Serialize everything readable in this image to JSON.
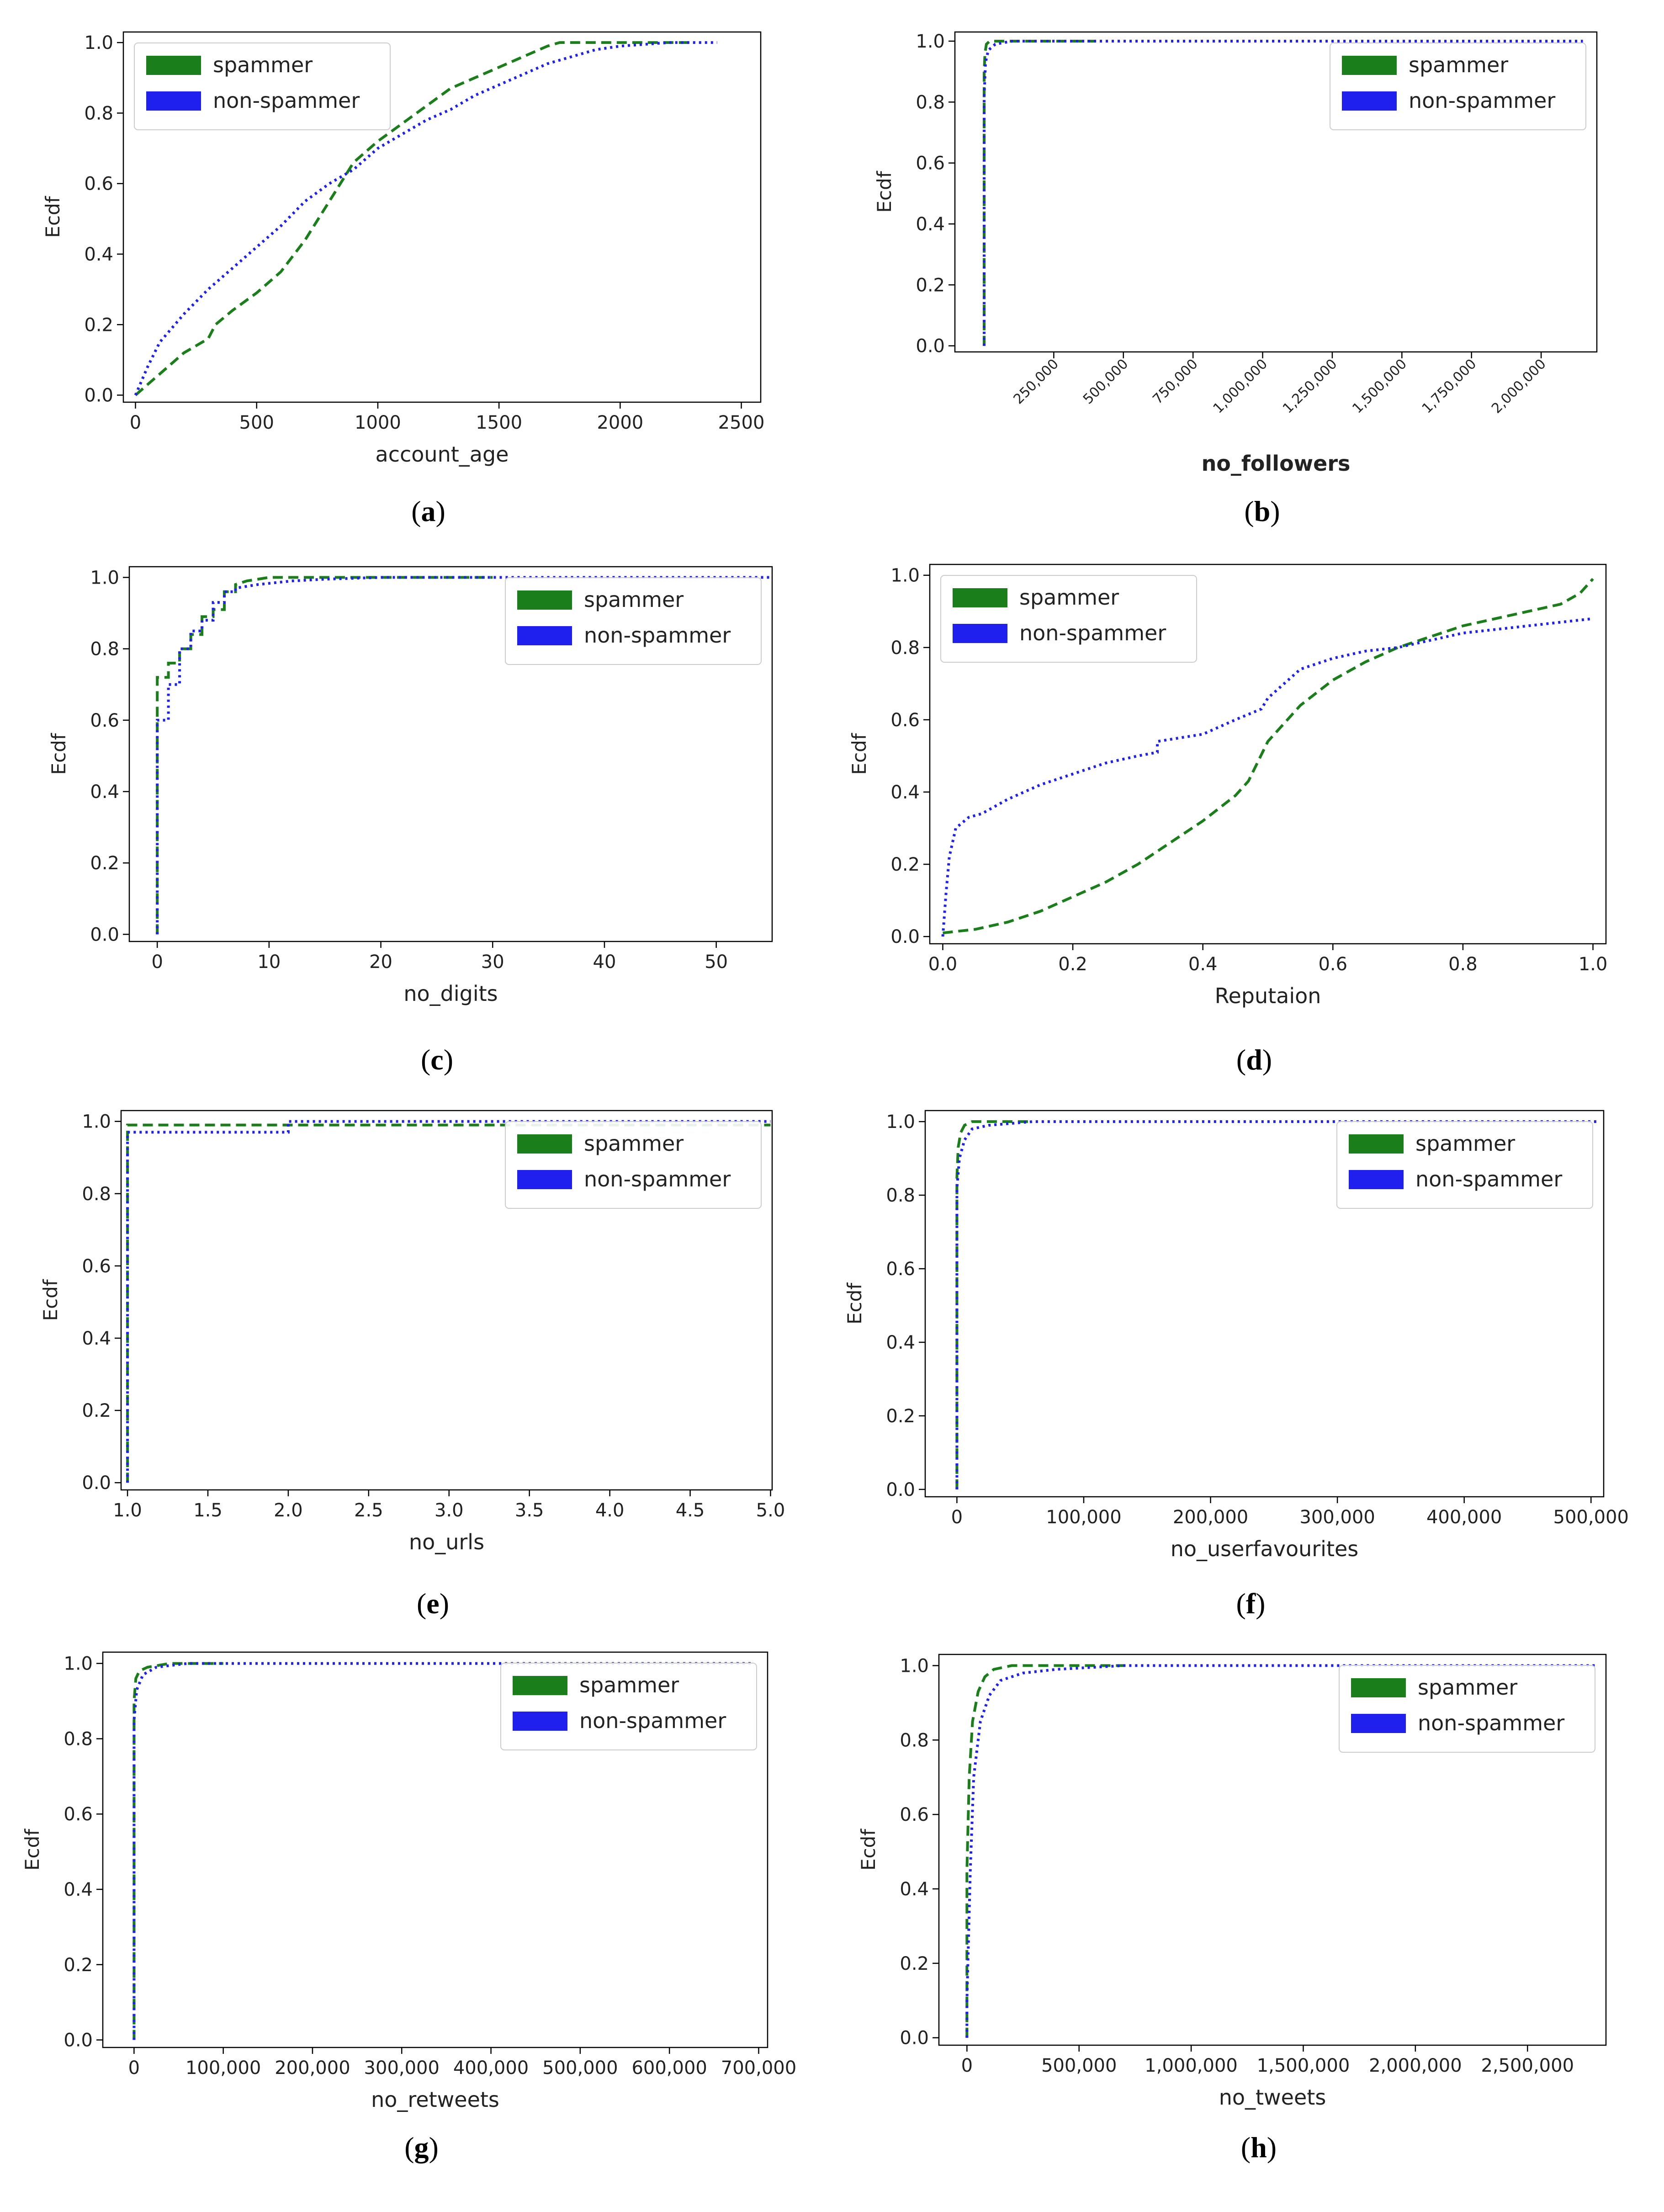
{
  "chart_data": [
    {
      "id": "a",
      "type": "line",
      "panel_label": "(a)",
      "title": "",
      "xlabel": "account_age",
      "ylabel": "Ecdf",
      "xlim": [
        -50,
        2580
      ],
      "ylim": [
        -0.02,
        1.03
      ],
      "xticks": [
        0,
        500,
        1000,
        1500,
        2000,
        2500
      ],
      "xtick_labels": [
        "0",
        "500",
        "1000",
        "1500",
        "2000",
        "2500"
      ],
      "yticks": [
        0.0,
        0.2,
        0.4,
        0.6,
        0.8,
        1.0
      ],
      "ytick_labels": [
        "0.0",
        "0.2",
        "0.4",
        "0.6",
        "0.8",
        "1.0"
      ],
      "legend_position": "top-left",
      "series": [
        {
          "name": "spammer",
          "color": "#1a7f1a",
          "style": "dashed",
          "x": [
            0,
            50,
            100,
            200,
            300,
            330,
            400,
            500,
            600,
            700,
            800,
            900,
            1000,
            1100,
            1200,
            1300,
            1400,
            1500,
            1600,
            1700,
            1750,
            1800,
            2000,
            2200,
            2300
          ],
          "y": [
            0.0,
            0.03,
            0.06,
            0.12,
            0.16,
            0.2,
            0.24,
            0.29,
            0.35,
            0.44,
            0.55,
            0.66,
            0.72,
            0.77,
            0.82,
            0.87,
            0.9,
            0.93,
            0.96,
            0.99,
            1.0,
            1.0,
            1.0,
            1.0,
            1.0
          ]
        },
        {
          "name": "non-spammer",
          "color": "#2020ee",
          "style": "dotted",
          "x": [
            0,
            50,
            100,
            200,
            300,
            400,
            500,
            600,
            700,
            800,
            900,
            1000,
            1100,
            1200,
            1300,
            1400,
            1500,
            1600,
            1700,
            1800,
            1900,
            2000,
            2200,
            2400
          ],
          "y": [
            0.0,
            0.08,
            0.15,
            0.23,
            0.3,
            0.36,
            0.42,
            0.48,
            0.55,
            0.6,
            0.64,
            0.7,
            0.74,
            0.78,
            0.81,
            0.85,
            0.88,
            0.91,
            0.94,
            0.96,
            0.98,
            0.99,
            1.0,
            1.0
          ]
        }
      ]
    },
    {
      "id": "b",
      "type": "line",
      "panel_label": "(b)",
      "title": "",
      "xlabel": "no_followers",
      "ylabel": "Ecdf",
      "xlim": [
        -105000,
        2200000
      ],
      "ylim": [
        -0.02,
        1.03
      ],
      "xticks": [
        250000,
        500000,
        750000,
        1000000,
        1250000,
        1500000,
        1750000,
        2000000
      ],
      "xtick_labels": [
        "250,000",
        "500,000",
        "750,000",
        "1,000,000",
        "1,250,000",
        "1,500,000",
        "1,750,000",
        "2,000,000"
      ],
      "rotate_xticks": true,
      "yticks": [
        0.0,
        0.2,
        0.4,
        0.6,
        0.8,
        1.0
      ],
      "ytick_labels": [
        "0.0",
        "0.2",
        "0.4",
        "0.6",
        "0.8",
        "1.0"
      ],
      "legend_position": "top-right",
      "series": [
        {
          "name": "spammer",
          "color": "#1a7f1a",
          "style": "dashed",
          "x": [
            0,
            0,
            3000,
            8000,
            20000,
            60000,
            400000
          ],
          "y": [
            0.0,
            0.9,
            0.96,
            0.99,
            1.0,
            1.0,
            1.0
          ]
        },
        {
          "name": "non-spammer",
          "color": "#2020ee",
          "style": "dotted",
          "x": [
            0,
            0,
            5000,
            15000,
            40000,
            100000,
            2150000
          ],
          "y": [
            0.0,
            0.82,
            0.93,
            0.97,
            0.99,
            1.0,
            1.0
          ]
        }
      ]
    },
    {
      "id": "c",
      "type": "line",
      "panel_label": "(c)",
      "title": "",
      "xlabel": "no_digits",
      "ylabel": "Ecdf",
      "xlim": [
        -2.5,
        55
      ],
      "ylim": [
        -0.02,
        1.03
      ],
      "xticks": [
        0,
        10,
        20,
        30,
        40,
        50
      ],
      "xtick_labels": [
        "0",
        "10",
        "20",
        "30",
        "40",
        "50"
      ],
      "yticks": [
        0.0,
        0.2,
        0.4,
        0.6,
        0.8,
        1.0
      ],
      "ytick_labels": [
        "0.0",
        "0.2",
        "0.4",
        "0.6",
        "0.8",
        "1.0"
      ],
      "legend_position": "top-right",
      "series": [
        {
          "name": "spammer",
          "color": "#1a7f1a",
          "style": "dashed",
          "x": [
            0,
            0,
            1,
            1,
            2,
            2,
            3,
            3,
            4,
            4,
            5,
            5,
            6,
            6,
            7,
            7,
            8,
            10,
            14,
            20,
            30
          ],
          "y": [
            0.0,
            0.72,
            0.72,
            0.76,
            0.76,
            0.8,
            0.8,
            0.84,
            0.84,
            0.89,
            0.89,
            0.91,
            0.91,
            0.96,
            0.96,
            0.98,
            0.99,
            1.0,
            1.0,
            1.0,
            1.0
          ]
        },
        {
          "name": "non-spammer",
          "color": "#2020ee",
          "style": "dotted",
          "x": [
            0,
            0,
            1,
            1,
            2,
            2,
            3,
            3,
            4,
            4,
            5,
            5,
            6,
            6,
            7,
            7,
            9,
            12,
            15,
            20,
            30,
            55
          ],
          "y": [
            0.0,
            0.6,
            0.6,
            0.7,
            0.7,
            0.8,
            0.8,
            0.85,
            0.85,
            0.88,
            0.88,
            0.93,
            0.93,
            0.96,
            0.96,
            0.97,
            0.98,
            0.99,
            0.995,
            1.0,
            1.0,
            1.0
          ]
        }
      ]
    },
    {
      "id": "d",
      "type": "line",
      "panel_label": "(d)",
      "title": "",
      "xlabel": "Reputaion",
      "ylabel": "Ecdf",
      "xlim": [
        -0.02,
        1.02
      ],
      "ylim": [
        -0.02,
        1.03
      ],
      "xticks": [
        0.0,
        0.2,
        0.4,
        0.6,
        0.8,
        1.0
      ],
      "xtick_labels": [
        "0.0",
        "0.2",
        "0.4",
        "0.6",
        "0.8",
        "1.0"
      ],
      "yticks": [
        0.0,
        0.2,
        0.4,
        0.6,
        0.8,
        1.0
      ],
      "ytick_labels": [
        "0.0",
        "0.2",
        "0.4",
        "0.6",
        "0.8",
        "1.0"
      ],
      "legend_position": "top-left",
      "series": [
        {
          "name": "spammer",
          "color": "#1a7f1a",
          "style": "dashed",
          "x": [
            0.0,
            0.05,
            0.1,
            0.15,
            0.2,
            0.25,
            0.3,
            0.35,
            0.4,
            0.45,
            0.47,
            0.5,
            0.55,
            0.6,
            0.65,
            0.7,
            0.75,
            0.8,
            0.85,
            0.9,
            0.95,
            0.98,
            1.0
          ],
          "y": [
            0.01,
            0.02,
            0.04,
            0.07,
            0.11,
            0.15,
            0.2,
            0.26,
            0.32,
            0.39,
            0.43,
            0.54,
            0.64,
            0.71,
            0.76,
            0.8,
            0.83,
            0.86,
            0.88,
            0.9,
            0.92,
            0.95,
            0.99
          ]
        },
        {
          "name": "non-spammer",
          "color": "#2020ee",
          "style": "dotted",
          "x": [
            0.0,
            0.005,
            0.01,
            0.02,
            0.04,
            0.06,
            0.08,
            0.1,
            0.15,
            0.2,
            0.25,
            0.3,
            0.33,
            0.33,
            0.4,
            0.45,
            0.49,
            0.5,
            0.55,
            0.6,
            0.65,
            0.7,
            0.75,
            0.8,
            0.85,
            0.9,
            0.95,
            1.0
          ],
          "y": [
            0.0,
            0.12,
            0.22,
            0.3,
            0.33,
            0.34,
            0.36,
            0.38,
            0.42,
            0.45,
            0.48,
            0.5,
            0.51,
            0.54,
            0.56,
            0.6,
            0.63,
            0.66,
            0.74,
            0.77,
            0.79,
            0.8,
            0.82,
            0.84,
            0.85,
            0.86,
            0.87,
            0.88
          ]
        }
      ]
    },
    {
      "id": "e",
      "type": "line",
      "panel_label": "(e)",
      "title": "",
      "xlabel": "no_urls",
      "ylabel": "Ecdf",
      "xlim": [
        0.96,
        5.01
      ],
      "ylim": [
        -0.02,
        1.03
      ],
      "xticks": [
        1.0,
        1.5,
        2.0,
        2.5,
        3.0,
        3.5,
        4.0,
        4.5,
        5.0
      ],
      "xtick_labels": [
        "1.0",
        "1.5",
        "2.0",
        "2.5",
        "3.0",
        "3.5",
        "4.0",
        "4.5",
        "5.0"
      ],
      "yticks": [
        0.0,
        0.2,
        0.4,
        0.6,
        0.8,
        1.0
      ],
      "ytick_labels": [
        "0.0",
        "0.2",
        "0.4",
        "0.6",
        "0.8",
        "1.0"
      ],
      "legend_position": "top-right",
      "series": [
        {
          "name": "spammer",
          "color": "#1a7f1a",
          "style": "dashed",
          "x": [
            1.0,
            1.0,
            5.0
          ],
          "y": [
            0.0,
            0.99,
            0.99
          ]
        },
        {
          "name": "non-spammer",
          "color": "#2020ee",
          "style": "dotted",
          "x": [
            1.0,
            1.0,
            2.0,
            2.0,
            5.0
          ],
          "y": [
            0.0,
            0.97,
            0.97,
            1.0,
            1.0
          ]
        }
      ]
    },
    {
      "id": "f",
      "type": "line",
      "panel_label": "(f)",
      "title": "",
      "xlabel": "no_userfavourites",
      "ylabel": "Ecdf",
      "xlim": [
        -25000,
        510000
      ],
      "ylim": [
        -0.02,
        1.03
      ],
      "xticks": [
        0,
        100000,
        200000,
        300000,
        400000,
        500000
      ],
      "xtick_labels": [
        "0",
        "100,000",
        "200,000",
        "300,000",
        "400,000",
        "500,000"
      ],
      "yticks": [
        0.0,
        0.2,
        0.4,
        0.6,
        0.8,
        1.0
      ],
      "ytick_labels": [
        "0.0",
        "0.2",
        "0.4",
        "0.6",
        "0.8",
        "1.0"
      ],
      "legend_position": "top-right",
      "series": [
        {
          "name": "spammer",
          "color": "#1a7f1a",
          "style": "dashed",
          "x": [
            0,
            0,
            1000,
            3000,
            6000,
            12000,
            30000,
            60000
          ],
          "y": [
            0.0,
            0.85,
            0.93,
            0.97,
            0.99,
            1.0,
            1.0,
            1.0
          ]
        },
        {
          "name": "non-spammer",
          "color": "#2020ee",
          "style": "dotted",
          "x": [
            0,
            0,
            2000,
            6000,
            12000,
            25000,
            60000,
            505000
          ],
          "y": [
            0.0,
            0.82,
            0.9,
            0.95,
            0.98,
            0.99,
            1.0,
            1.0
          ]
        }
      ]
    },
    {
      "id": "g",
      "type": "line",
      "panel_label": "(g)",
      "title": "",
      "xlabel": "no_retweets",
      "ylabel": "Ecdf",
      "xlim": [
        -35000,
        710000
      ],
      "ylim": [
        -0.02,
        1.03
      ],
      "xticks": [
        0,
        100000,
        200000,
        300000,
        400000,
        500000,
        600000,
        700000
      ],
      "xtick_labels": [
        "0",
        "100,000",
        "200,000",
        "300,000",
        "400,000",
        "500,000",
        "600,000",
        "700,000"
      ],
      "yticks": [
        0.0,
        0.2,
        0.4,
        0.6,
        0.8,
        1.0
      ],
      "ytick_labels": [
        "0.0",
        "0.2",
        "0.4",
        "0.6",
        "0.8",
        "1.0"
      ],
      "legend_position": "top-right",
      "series": [
        {
          "name": "spammer",
          "color": "#1a7f1a",
          "style": "dashed",
          "x": [
            0,
            0,
            2000,
            6000,
            15000,
            40000,
            100000
          ],
          "y": [
            0.0,
            0.9,
            0.96,
            0.98,
            0.99,
            1.0,
            1.0
          ]
        },
        {
          "name": "non-spammer",
          "color": "#2020ee",
          "style": "dotted",
          "x": [
            0,
            0,
            3000,
            10000,
            25000,
            60000,
            695000
          ],
          "y": [
            0.0,
            0.85,
            0.93,
            0.97,
            0.99,
            1.0,
            1.0
          ]
        }
      ]
    },
    {
      "id": "h",
      "type": "line",
      "panel_label": "(h)",
      "title": "",
      "xlabel": "no_tweets",
      "ylabel": "Ecdf",
      "xlim": [
        -125000,
        2850000
      ],
      "ylim": [
        -0.02,
        1.03
      ],
      "xticks": [
        0,
        500000,
        1000000,
        1500000,
        2000000,
        2500000
      ],
      "xtick_labels": [
        "0",
        "500,000",
        "1,000,000",
        "1,500,000",
        "2,000,000",
        "2,500,000"
      ],
      "yticks": [
        0.0,
        0.2,
        0.4,
        0.6,
        0.8,
        1.0
      ],
      "ytick_labels": [
        "0.0",
        "0.2",
        "0.4",
        "0.6",
        "0.8",
        "1.0"
      ],
      "legend_position": "top-right",
      "series": [
        {
          "name": "spammer",
          "color": "#1a7f1a",
          "style": "dashed",
          "x": [
            0,
            0,
            10000,
            25000,
            50000,
            80000,
            120000,
            200000,
            400000,
            700000
          ],
          "y": [
            0.0,
            0.45,
            0.7,
            0.85,
            0.93,
            0.97,
            0.99,
            1.0,
            1.0,
            1.0
          ]
        },
        {
          "name": "non-spammer",
          "color": "#2020ee",
          "style": "dotted",
          "x": [
            0,
            0,
            15000,
            30000,
            60000,
            100000,
            150000,
            250000,
            400000,
            700000,
            1000000,
            2800000
          ],
          "y": [
            0.0,
            0.1,
            0.45,
            0.7,
            0.85,
            0.92,
            0.96,
            0.98,
            0.99,
            1.0,
            1.0,
            1.0
          ]
        }
      ]
    }
  ]
}
